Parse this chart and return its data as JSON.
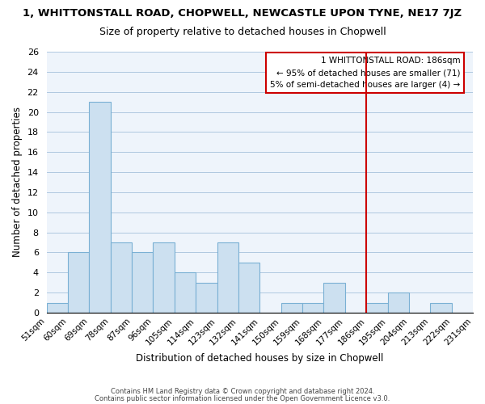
{
  "title": "1, WHITTONSTALL ROAD, CHOPWELL, NEWCASTLE UPON TYNE, NE17 7JZ",
  "subtitle": "Size of property relative to detached houses in Chopwell",
  "xlabel": "Distribution of detached houses by size in Chopwell",
  "ylabel": "Number of detached properties",
  "footer_line1": "Contains HM Land Registry data © Crown copyright and database right 2024.",
  "footer_line2": "Contains public sector information licensed under the Open Government Licence v3.0.",
  "bin_labels": [
    "51sqm",
    "60sqm",
    "69sqm",
    "78sqm",
    "87sqm",
    "96sqm",
    "105sqm",
    "114sqm",
    "123sqm",
    "132sqm",
    "141sqm",
    "150sqm",
    "159sqm",
    "168sqm",
    "177sqm",
    "186sqm",
    "195sqm",
    "204sqm",
    "213sqm",
    "222sqm",
    "231sqm"
  ],
  "bar_values": [
    1,
    6,
    21,
    7,
    6,
    7,
    4,
    3,
    7,
    5,
    0,
    1,
    1,
    3,
    0,
    1,
    2,
    0,
    1,
    0
  ],
  "bar_color": "#cce0f0",
  "bar_edge_color": "#7ab0d4",
  "vline_color": "#cc0000",
  "vline_pos": 15,
  "ylim": [
    0,
    26
  ],
  "yticks": [
    0,
    2,
    4,
    6,
    8,
    10,
    12,
    14,
    16,
    18,
    20,
    22,
    24,
    26
  ],
  "annotation_title": "1 WHITTONSTALL ROAD: 186sqm",
  "annotation_line1": "← 95% of detached houses are smaller (71)",
  "annotation_line2": "5% of semi-detached houses are larger (4) →",
  "annotation_box_color": "#ffffff",
  "annotation_box_edge": "#cc0000"
}
